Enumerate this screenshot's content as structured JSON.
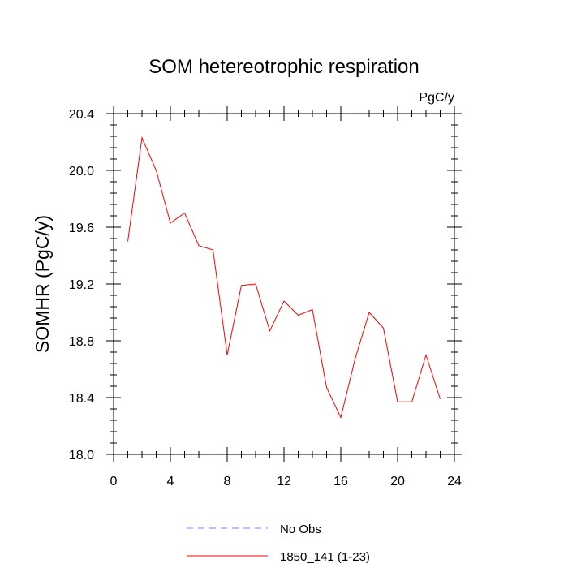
{
  "chart_data": {
    "type": "line",
    "title": "SOM hetereotrophic respiration",
    "units": "PgC/y",
    "ylabel": "SOMHR  (PgC/y)",
    "xlabel": "",
    "xlim": [
      0,
      24
    ],
    "ylim": [
      18.0,
      20.4
    ],
    "xticks": [
      0,
      4,
      8,
      12,
      16,
      20,
      24
    ],
    "xtick_labels": [
      "0",
      "4",
      "8",
      "12",
      "16",
      "20",
      "24"
    ],
    "yticks": [
      18.0,
      18.4,
      18.8,
      19.2,
      19.6,
      20.0,
      20.4
    ],
    "ytick_labels": [
      "18.0",
      "18.4",
      "18.8",
      "19.2",
      "19.6",
      "20.0",
      "20.4"
    ],
    "grid": false,
    "legend_position": "bottom",
    "series": [
      {
        "name": "No Obs",
        "color": "#8080ff",
        "dash": "dashed",
        "x": [],
        "values": []
      },
      {
        "name": "1850_141 (1-23)",
        "color": "#ff0000",
        "dash": "solid",
        "x": [
          1,
          2,
          3,
          4,
          5,
          6,
          7,
          8,
          9,
          10,
          11,
          12,
          13,
          14,
          15,
          16,
          17,
          18,
          19,
          20,
          21,
          22,
          23
        ],
        "values": [
          19.5,
          20.23,
          20.0,
          19.63,
          19.7,
          19.47,
          19.44,
          18.7,
          19.19,
          19.2,
          18.87,
          19.08,
          18.98,
          19.02,
          18.47,
          18.26,
          18.67,
          19.0,
          18.89,
          18.37,
          18.37,
          18.7,
          18.39
        ]
      }
    ]
  }
}
